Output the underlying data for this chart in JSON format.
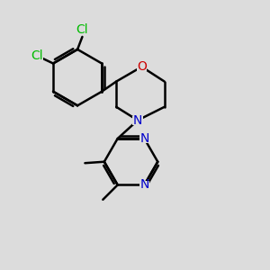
{
  "bg_color": "#dcdcdc",
  "bond_color": "#000000",
  "bond_width": 1.8,
  "cl_color": "#00bb00",
  "o_color": "#cc0000",
  "n_color": "#0000cc",
  "font_size": 10,
  "cl_font_size": 10,
  "figsize": [
    3.0,
    3.0
  ],
  "dpi": 100,
  "xlim": [
    0,
    10
  ],
  "ylim": [
    0,
    10
  ]
}
